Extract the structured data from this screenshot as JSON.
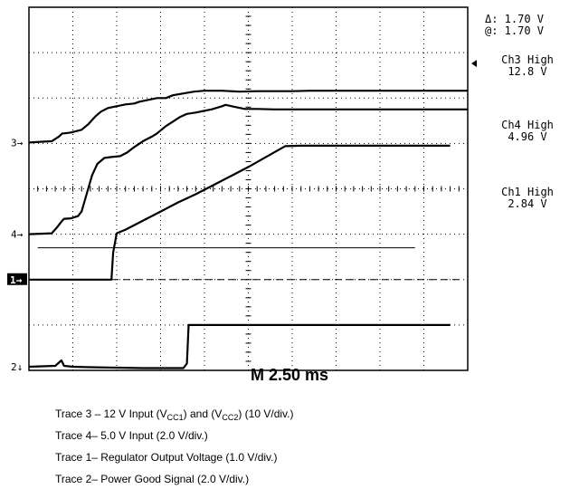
{
  "chart_data": {
    "type": "line",
    "title": "",
    "xlabel": "",
    "ylabel": "",
    "timebase": "M 2.50 ms",
    "x_unit": "ms",
    "xlim": [
      0,
      25
    ],
    "grid": true,
    "divisions": {
      "x": 10,
      "y": 8
    },
    "ylim_divisions": [
      -4,
      4
    ],
    "cursor": {
      "delta": "Δ: 1.70 V",
      "at": "@: 1.70 V"
    },
    "channel_readouts": [
      {
        "name": "Ch3 High",
        "value": "12.8 V"
      },
      {
        "name": "Ch4 High",
        "value": "4.96 V"
      },
      {
        "name": "Ch1 High",
        "value": "2.84 V"
      }
    ],
    "markers": [
      {
        "label": "3",
        "arrow": "→",
        "level_div": 1.02
      },
      {
        "label": "4",
        "arrow": "→",
        "level_div": -1.0
      },
      {
        "label": "1",
        "arrow": "→",
        "level_div": -2.0,
        "boxed": true
      },
      {
        "label": "2",
        "arrow": "↓",
        "level_div": -3.92
      }
    ],
    "trigger_level_div": 2.76,
    "reference_lines": [
      {
        "name": "ch1-ground-dashed",
        "y_div": -2.0,
        "style": "dashed"
      },
      {
        "name": "cursor-line",
        "y_div": -1.3,
        "x_from": 0.5,
        "x_to": 10.0,
        "style": "solid"
      }
    ],
    "series": [
      {
        "trace": "3",
        "color": "#000000",
        "points": [
          [
            0,
            1.02
          ],
          [
            1.3,
            1.05
          ],
          [
            1.7,
            1.15
          ],
          [
            1.9,
            1.22
          ],
          [
            2.0,
            1.22
          ],
          [
            2.4,
            1.24
          ],
          [
            2.7,
            1.27
          ],
          [
            3.0,
            1.3
          ],
          [
            3.4,
            1.43
          ],
          [
            3.8,
            1.6
          ],
          [
            4.1,
            1.7
          ],
          [
            4.5,
            1.78
          ],
          [
            5.0,
            1.82
          ],
          [
            5.5,
            1.86
          ],
          [
            6.0,
            1.88
          ],
          [
            6.3,
            1.92
          ],
          [
            6.8,
            1.96
          ],
          [
            7.3,
            2.0
          ],
          [
            7.8,
            2.0
          ],
          [
            8.2,
            2.06
          ],
          [
            8.8,
            2.1
          ],
          [
            9.4,
            2.14
          ],
          [
            10.0,
            2.16
          ],
          [
            11.0,
            2.16
          ],
          [
            12.0,
            2.14
          ],
          [
            13.0,
            2.15
          ],
          [
            14.0,
            2.15
          ],
          [
            15.0,
            2.15
          ],
          [
            16.0,
            2.16
          ],
          [
            17.0,
            2.16
          ],
          [
            18.0,
            2.16
          ],
          [
            19.0,
            2.16
          ],
          [
            20.0,
            2.16
          ],
          [
            21.0,
            2.16
          ],
          [
            22.0,
            2.16
          ],
          [
            23.0,
            2.16
          ],
          [
            24.0,
            2.16
          ],
          [
            25.0,
            2.16
          ]
        ]
      },
      {
        "trace": "4",
        "color": "#000000",
        "points": [
          [
            0,
            -1.0
          ],
          [
            1.3,
            -0.98
          ],
          [
            1.6,
            -0.85
          ],
          [
            1.9,
            -0.7
          ],
          [
            2.0,
            -0.66
          ],
          [
            2.4,
            -0.65
          ],
          [
            2.8,
            -0.6
          ],
          [
            3.0,
            -0.5
          ],
          [
            3.3,
            -0.1
          ],
          [
            3.6,
            0.3
          ],
          [
            3.9,
            0.55
          ],
          [
            4.3,
            0.68
          ],
          [
            4.7,
            0.7
          ],
          [
            5.2,
            0.72
          ],
          [
            5.6,
            0.8
          ],
          [
            6.0,
            0.92
          ],
          [
            6.5,
            1.05
          ],
          [
            7.0,
            1.15
          ],
          [
            7.3,
            1.22
          ],
          [
            7.8,
            1.38
          ],
          [
            8.2,
            1.48
          ],
          [
            8.6,
            1.58
          ],
          [
            9.0,
            1.65
          ],
          [
            9.5,
            1.68
          ],
          [
            10.0,
            1.72
          ],
          [
            10.4,
            1.75
          ],
          [
            11.0,
            1.82
          ],
          [
            11.2,
            1.85
          ],
          [
            11.8,
            1.8
          ],
          [
            12.3,
            1.76
          ],
          [
            13.0,
            1.76
          ],
          [
            14.0,
            1.75
          ],
          [
            15.0,
            1.75
          ],
          [
            16.0,
            1.75
          ],
          [
            17.0,
            1.75
          ],
          [
            18.0,
            1.75
          ],
          [
            19.0,
            1.75
          ],
          [
            20.0,
            1.75
          ],
          [
            21.0,
            1.75
          ],
          [
            22.0,
            1.75
          ],
          [
            23.0,
            1.75
          ],
          [
            24.0,
            1.75
          ],
          [
            25.0,
            1.75
          ]
        ]
      },
      {
        "trace": "1",
        "color": "#000000",
        "points": [
          [
            0,
            -2.0
          ],
          [
            2.0,
            -2.0
          ],
          [
            4.0,
            -2.0
          ],
          [
            4.7,
            -2.0
          ],
          [
            4.8,
            -1.4
          ],
          [
            5.0,
            -0.98
          ],
          [
            5.5,
            -0.9
          ],
          [
            6.5,
            -0.7
          ],
          [
            7.5,
            -0.5
          ],
          [
            8.5,
            -0.3
          ],
          [
            9.5,
            -0.12
          ],
          [
            10.5,
            0.08
          ],
          [
            11.5,
            0.28
          ],
          [
            12.5,
            0.48
          ],
          [
            13.5,
            0.7
          ],
          [
            14.6,
            0.94
          ],
          [
            15.5,
            0.95
          ],
          [
            16.5,
            0.95
          ],
          [
            17.5,
            0.95
          ],
          [
            18.5,
            0.95
          ],
          [
            19.5,
            0.95
          ],
          [
            20.5,
            0.95
          ],
          [
            21.5,
            0.95
          ],
          [
            22.5,
            0.95
          ],
          [
            23.5,
            0.95
          ],
          [
            24.0,
            0.95
          ]
        ]
      },
      {
        "trace": "2",
        "color": "#000000",
        "points": [
          [
            0,
            -3.92
          ],
          [
            1.5,
            -3.9
          ],
          [
            1.85,
            -3.78
          ],
          [
            2.0,
            -3.9
          ],
          [
            2.5,
            -3.92
          ],
          [
            3.5,
            -3.93
          ],
          [
            5.0,
            -3.94
          ],
          [
            6.5,
            -3.95
          ],
          [
            8.8,
            -3.95
          ],
          [
            9.0,
            -3.85
          ],
          [
            9.1,
            -3.0
          ],
          [
            9.3,
            -3.0
          ],
          [
            10.0,
            -3.0
          ],
          [
            12.0,
            -3.0
          ],
          [
            14.0,
            -3.0
          ],
          [
            16.0,
            -3.0
          ],
          [
            18.0,
            -3.0
          ],
          [
            20.0,
            -3.0
          ],
          [
            22.0,
            -3.0
          ],
          [
            24.0,
            -3.0
          ]
        ]
      }
    ]
  },
  "captions": [
    {
      "prefix": "Trace 3 – 12 V Input (V",
      "sub1": "CC1",
      "mid": ") and (V",
      "sub2": "CC2",
      "suffix": ") (10 V/div.)"
    },
    {
      "prefix": "Trace 4– 5.0 V Input (2.0 V/div.)"
    },
    {
      "prefix": "Trace 1– Regulator Output Voltage (1.0 V/div.)"
    },
    {
      "prefix": "Trace 2– Power Good Signal (2.0 V/div.)"
    }
  ]
}
